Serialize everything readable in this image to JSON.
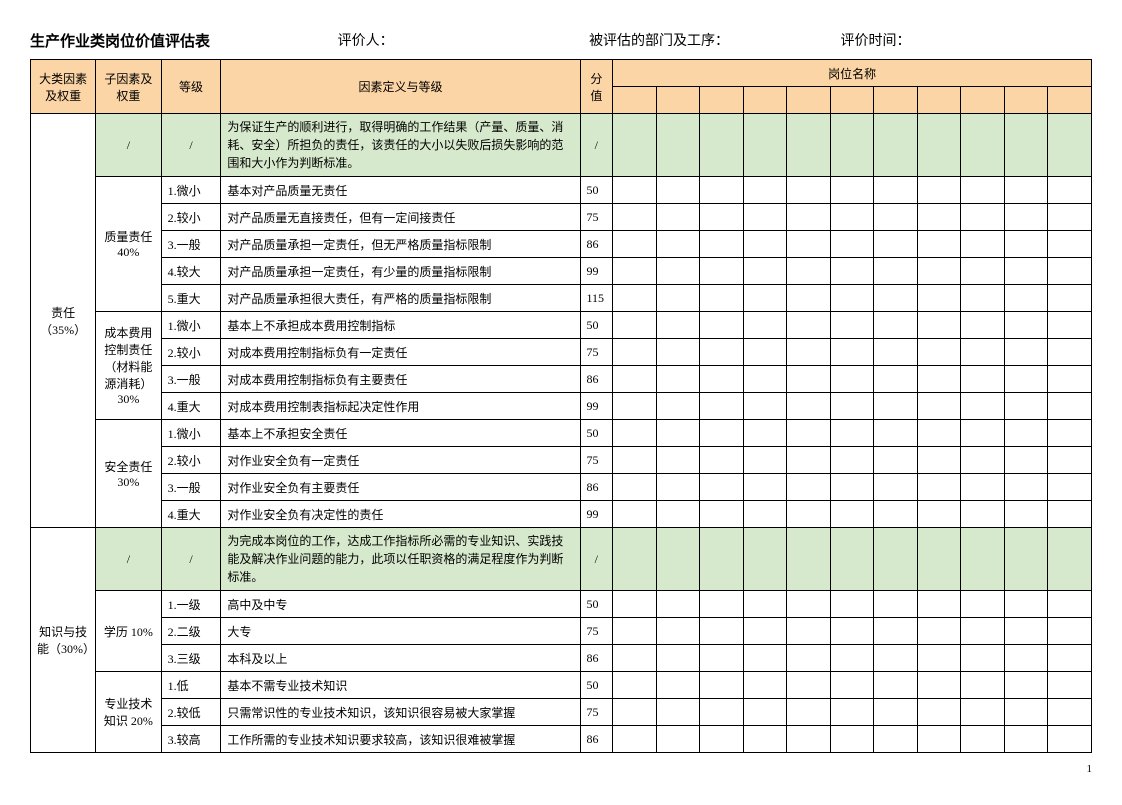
{
  "header": {
    "title": "生产作业类岗位价值评估表",
    "evaluator": "评价人：",
    "department": "被评估的部门及工序：",
    "evalTime": "评价时间："
  },
  "cols": {
    "majorFactor": "大类因素及权重",
    "subFactor": "子因素及权重",
    "level": "等级",
    "definition": "因素定义与等级",
    "score": "分值",
    "position": "岗位名称"
  },
  "slash": "/",
  "categories": [
    {
      "name": "责任（35%）",
      "intro": "为保证生产的顺利进行，取得明确的工作结果（产量、质量、消耗、安全）所担负的责任，该责任的大小以失败后损失影响的范围和大小作为判断标准。",
      "subs": [
        {
          "name": "质量责任 40%",
          "rows": [
            {
              "lvl": "1.微小",
              "def": "基本对产品质量无责任",
              "sc": "50"
            },
            {
              "lvl": "2.较小",
              "def": "对产品质量无直接责任，但有一定间接责任",
              "sc": "75"
            },
            {
              "lvl": "3.一般",
              "def": "对产品质量承担一定责任，但无严格质量指标限制",
              "sc": "86"
            },
            {
              "lvl": "4.较大",
              "def": "对产品质量承担一定责任，有少量的质量指标限制",
              "sc": "99"
            },
            {
              "lvl": "5.重大",
              "def": "对产品质量承担很大责任，有严格的质量指标限制",
              "sc": "115"
            }
          ]
        },
        {
          "name": "成本费用控制责任（材料能源消耗） 30%",
          "rows": [
            {
              "lvl": "1.微小",
              "def": "基本上不承担成本费用控制指标",
              "sc": "50"
            },
            {
              "lvl": "2.较小",
              "def": "对成本费用控制指标负有一定责任",
              "sc": "75"
            },
            {
              "lvl": "3.一般",
              "def": "对成本费用控制指标负有主要责任",
              "sc": "86"
            },
            {
              "lvl": "4.重大",
              "def": "对成本费用控制表指标起决定性作用",
              "sc": "99"
            }
          ]
        },
        {
          "name": "安全责任 30%",
          "rows": [
            {
              "lvl": "1.微小",
              "def": "基本上不承担安全责任",
              "sc": "50"
            },
            {
              "lvl": "2.较小",
              "def": "对作业安全负有一定责任",
              "sc": "75"
            },
            {
              "lvl": "3.一般",
              "def": "对作业安全负有主要责任",
              "sc": "86"
            },
            {
              "lvl": "4.重大",
              "def": "对作业安全负有决定性的责任",
              "sc": "99"
            }
          ]
        }
      ]
    },
    {
      "name": "知识与技能（30%）",
      "intro": "为完成本岗位的工作，达成工作指标所必需的专业知识、实践技能及解决作业问题的能力，此项以任职资格的满足程度作为判断标准。",
      "subs": [
        {
          "name": "学历 10%",
          "rows": [
            {
              "lvl": "1.一级",
              "def": "高中及中专",
              "sc": "50"
            },
            {
              "lvl": "2.二级",
              "def": "大专",
              "sc": "75"
            },
            {
              "lvl": "3.三级",
              "def": "本科及以上",
              "sc": "86"
            }
          ]
        },
        {
          "name": "专业技术知识 20%",
          "rows": [
            {
              "lvl": "1.低",
              "def": "基本不需专业技术知识",
              "sc": "50"
            },
            {
              "lvl": "2.较低",
              "def": "只需常识性的专业技术知识，该知识很容易被大家掌握",
              "sc": "75"
            },
            {
              "lvl": "3.较高",
              "def": "工作所需的专业技术知识要求较高，该知识很难被掌握",
              "sc": "86"
            }
          ]
        }
      ]
    }
  ],
  "posCount": 11,
  "pageNumber": "1",
  "colors": {
    "headerBg": "#fbd5a5",
    "introBg": "#d7e9cc",
    "border": "#000000",
    "text": "#000000",
    "pageBg": "#ffffff"
  }
}
